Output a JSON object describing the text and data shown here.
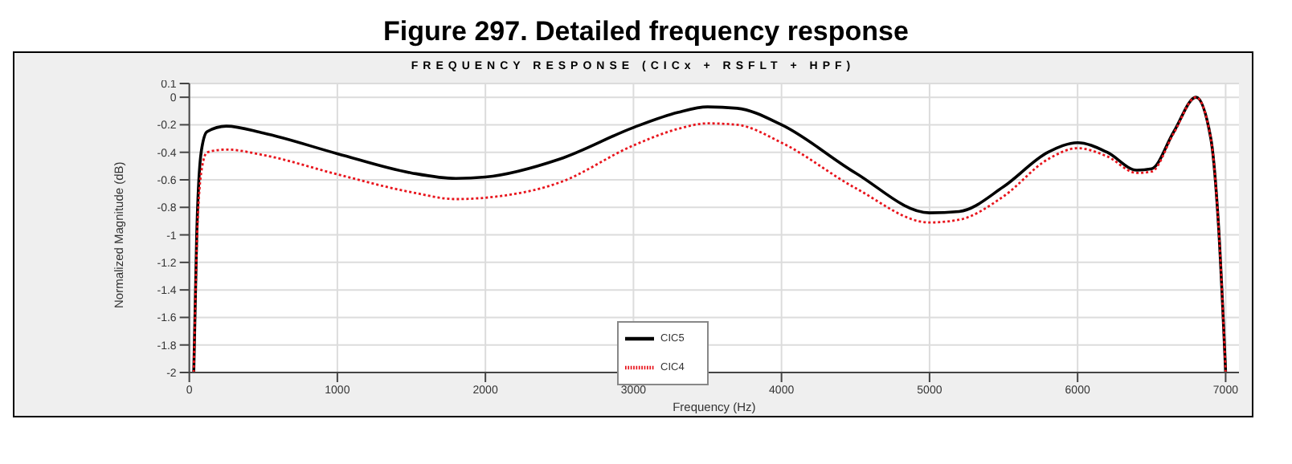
{
  "chart_data": {
    "type": "line",
    "title": "Figure 297. Detailed frequency response",
    "subtitle": "FREQUENCY RESPONSE  (CICx + RSFLT + HPF)",
    "xlabel": "Frequency (Hz)",
    "ylabel": "Normalized Magnitude (dB)",
    "xlim": [
      0,
      7090
    ],
    "xticks": [
      0,
      1000,
      2000,
      3000,
      4000,
      5000,
      6000,
      7000
    ],
    "ylim": [
      -2,
      0.1
    ],
    "yticks": [
      -2,
      -1.8,
      -1.6,
      -1.4,
      -1.2,
      -1,
      -0.8,
      -0.6,
      -0.4,
      -0.2,
      0,
      0.1
    ],
    "grid": true,
    "legend": "bottom",
    "marker": "none",
    "x": [
      30,
      50,
      80,
      120,
      250,
      500,
      1000,
      1500,
      1800,
      2000,
      2500,
      3000,
      3300,
      3500,
      3700,
      4000,
      4500,
      5000,
      5200,
      5500,
      5800,
      6000,
      6200,
      6400,
      6500,
      6650,
      6800,
      6900,
      6950,
      7000
    ],
    "series": [
      {
        "name": "CIC5",
        "color": "#000000",
        "line_style": "solid",
        "values": [
          -2,
          -1,
          -0.4,
          -0.25,
          -0.21,
          -0.26,
          -0.41,
          -0.55,
          -0.59,
          -0.58,
          -0.45,
          -0.22,
          -0.11,
          -0.07,
          -0.08,
          -0.2,
          -0.55,
          -0.84,
          -0.83,
          -0.65,
          -0.4,
          -0.33,
          -0.4,
          -0.53,
          -0.52,
          -0.25,
          0,
          -0.3,
          -0.9,
          -2
        ]
      },
      {
        "name": "CIC4",
        "color": "#e8141c",
        "line_style": "dotted",
        "values": [
          -2,
          -1.1,
          -0.55,
          -0.4,
          -0.38,
          -0.42,
          -0.56,
          -0.69,
          -0.74,
          -0.73,
          -0.62,
          -0.35,
          -0.23,
          -0.19,
          -0.2,
          -0.33,
          -0.66,
          -0.91,
          -0.89,
          -0.72,
          -0.45,
          -0.37,
          -0.43,
          -0.55,
          -0.54,
          -0.26,
          0,
          -0.3,
          -0.9,
          -2
        ]
      }
    ]
  }
}
